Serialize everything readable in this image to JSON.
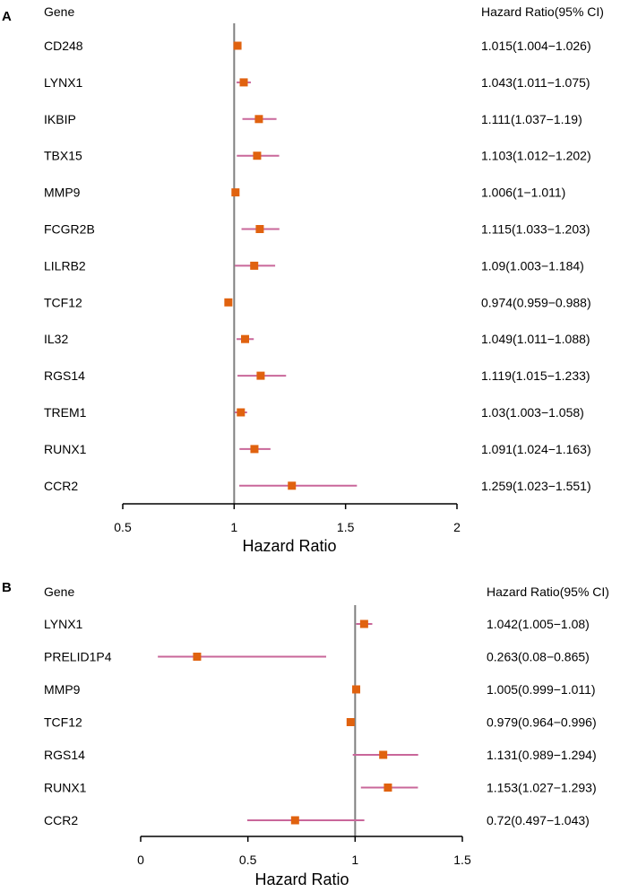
{
  "colors": {
    "marker": "#e0620f",
    "ci_line": "#c9679a",
    "ref_line": "#7f7f7f",
    "axis": "#000000"
  },
  "chart_data": [
    {
      "panel": "A",
      "type": "forest",
      "gene_header": "Gene",
      "hr_header": "Hazard Ratio(95% CI)",
      "xlabel": "Hazard Ratio",
      "xlim": [
        0.5,
        2
      ],
      "ticks": [
        0.5,
        1,
        1.5,
        2
      ],
      "tick_labels": [
        "0.5",
        "1",
        "1.5",
        "2"
      ],
      "ref_value": 1,
      "rows": [
        {
          "gene": "CD248",
          "hr": 1.015,
          "low": 1.004,
          "high": 1.026,
          "label": "1.015(1.004−1.026)"
        },
        {
          "gene": "LYNX1",
          "hr": 1.043,
          "low": 1.011,
          "high": 1.075,
          "label": "1.043(1.011−1.075)"
        },
        {
          "gene": "IKBIP",
          "hr": 1.111,
          "low": 1.037,
          "high": 1.19,
          "label": "1.111(1.037−1.19)"
        },
        {
          "gene": "TBX15",
          "hr": 1.103,
          "low": 1.012,
          "high": 1.202,
          "label": "1.103(1.012−1.202)"
        },
        {
          "gene": "MMP9",
          "hr": 1.006,
          "low": 1,
          "high": 1.011,
          "label": "1.006(1−1.011)"
        },
        {
          "gene": "FCGR2B",
          "hr": 1.115,
          "low": 1.033,
          "high": 1.203,
          "label": "1.115(1.033−1.203)"
        },
        {
          "gene": "LILRB2",
          "hr": 1.09,
          "low": 1.003,
          "high": 1.184,
          "label": "1.09(1.003−1.184)"
        },
        {
          "gene": "TCF12",
          "hr": 0.974,
          "low": 0.959,
          "high": 0.988,
          "label": "0.974(0.959−0.988)"
        },
        {
          "gene": "IL32",
          "hr": 1.049,
          "low": 1.011,
          "high": 1.088,
          "label": "1.049(1.011−1.088)"
        },
        {
          "gene": "RGS14",
          "hr": 1.119,
          "low": 1.015,
          "high": 1.233,
          "label": "1.119(1.015−1.233)"
        },
        {
          "gene": "TREM1",
          "hr": 1.03,
          "low": 1.003,
          "high": 1.058,
          "label": "1.03(1.003−1.058)"
        },
        {
          "gene": "RUNX1",
          "hr": 1.091,
          "low": 1.024,
          "high": 1.163,
          "label": "1.091(1.024−1.163)"
        },
        {
          "gene": "CCR2",
          "hr": 1.259,
          "low": 1.023,
          "high": 1.551,
          "label": "1.259(1.023−1.551)"
        }
      ]
    },
    {
      "panel": "B",
      "type": "forest",
      "gene_header": "Gene",
      "hr_header": "Hazard Ratio(95% CI)",
      "xlabel": "Hazard Ratio",
      "xlim": [
        0,
        1.5
      ],
      "ticks": [
        0,
        0.5,
        1,
        1.5
      ],
      "tick_labels": [
        "0",
        "0.5",
        "1",
        "1.5"
      ],
      "ref_value": 1,
      "rows": [
        {
          "gene": "LYNX1",
          "hr": 1.042,
          "low": 1.005,
          "high": 1.08,
          "label": "1.042(1.005−1.08)"
        },
        {
          "gene": "PRELID1P4",
          "hr": 0.263,
          "low": 0.08,
          "high": 0.865,
          "label": "0.263(0.08−0.865)"
        },
        {
          "gene": "MMP9",
          "hr": 1.005,
          "low": 0.999,
          "high": 1.011,
          "label": "1.005(0.999−1.011)"
        },
        {
          "gene": "TCF12",
          "hr": 0.979,
          "low": 0.964,
          "high": 0.996,
          "label": "0.979(0.964−0.996)"
        },
        {
          "gene": "RGS14",
          "hr": 1.131,
          "low": 0.989,
          "high": 1.294,
          "label": "1.131(0.989−1.294)"
        },
        {
          "gene": "RUNX1",
          "hr": 1.153,
          "low": 1.027,
          "high": 1.293,
          "label": "1.153(1.027−1.293)"
        },
        {
          "gene": "CCR2",
          "hr": 0.72,
          "low": 0.497,
          "high": 1.043,
          "label": "0.72(0.497−1.043)"
        }
      ]
    }
  ]
}
